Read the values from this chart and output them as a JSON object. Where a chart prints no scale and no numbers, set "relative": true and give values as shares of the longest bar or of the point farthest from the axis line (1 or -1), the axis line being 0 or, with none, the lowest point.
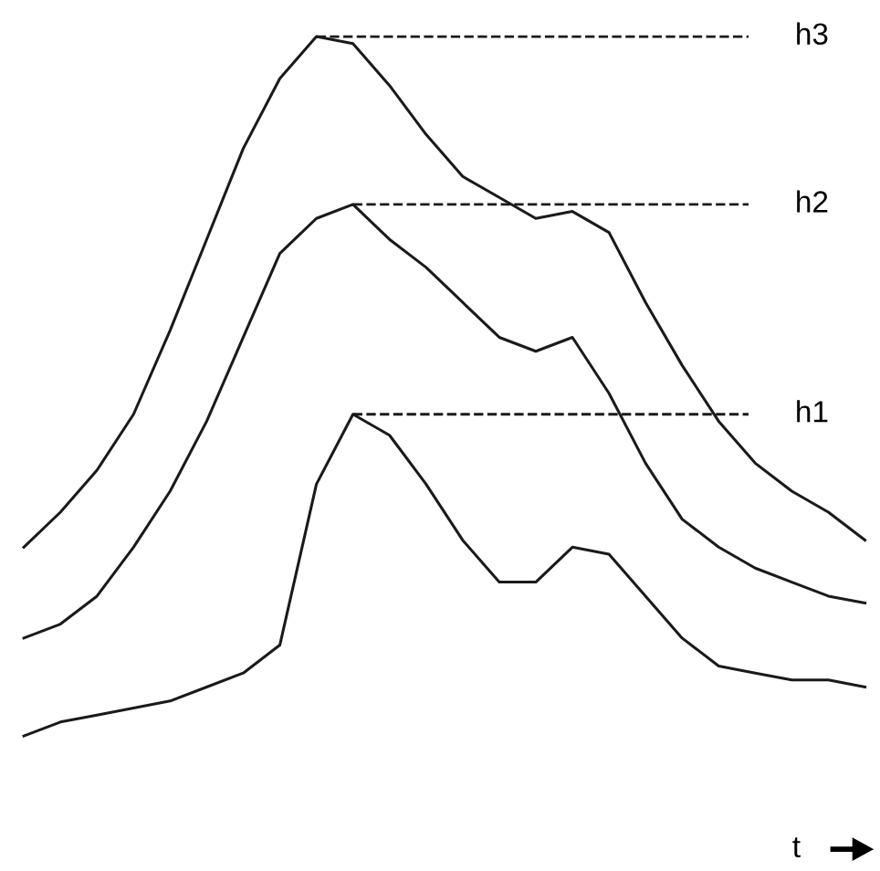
{
  "chart_data": {
    "type": "line",
    "relative": true,
    "xlabel": "t",
    "legend": false,
    "marker": "none",
    "line_style": "solid",
    "categories": [
      null,
      null,
      null,
      null,
      null,
      null,
      null,
      null,
      null,
      null,
      null,
      null,
      null,
      null,
      null,
      null,
      null,
      null,
      null,
      null,
      null,
      null,
      null,
      null
    ],
    "series": [
      {
        "color": "#1a1a1a",
        "values": [
          0.0,
          0.02,
          0.03,
          0.04,
          0.05,
          0.07,
          0.09,
          0.13,
          0.36,
          0.46,
          0.43,
          0.36,
          0.28,
          0.22,
          0.22,
          0.27,
          0.26,
          0.2,
          0.14,
          0.1,
          0.09,
          0.08,
          0.08,
          0.07
        ]
      },
      {
        "color": "#1a1a1a",
        "values": [
          0.14,
          0.16,
          0.2,
          0.27,
          0.35,
          0.45,
          0.57,
          0.69,
          0.74,
          0.76,
          0.71,
          0.67,
          0.62,
          0.57,
          0.55,
          0.57,
          0.49,
          0.39,
          0.31,
          0.27,
          0.24,
          0.22,
          0.2,
          0.19
        ]
      },
      {
        "color": "#1a1a1a",
        "values": [
          0.27,
          0.32,
          0.38,
          0.46,
          0.58,
          0.71,
          0.84,
          0.94,
          1.0,
          0.99,
          0.93,
          0.86,
          0.8,
          0.77,
          0.74,
          0.75,
          0.72,
          0.62,
          0.53,
          0.45,
          0.39,
          0.35,
          0.32,
          0.28
        ]
      }
    ],
    "ref_lines": [
      {
        "axis": "y",
        "value": 0.46,
        "label": "h1",
        "line_style": "dashed"
      },
      {
        "axis": "y",
        "value": 0.76,
        "label": "h2",
        "line_style": "dashed"
      },
      {
        "axis": "y",
        "value": 1.0,
        "label": "h3",
        "line_style": "dashed"
      }
    ]
  }
}
